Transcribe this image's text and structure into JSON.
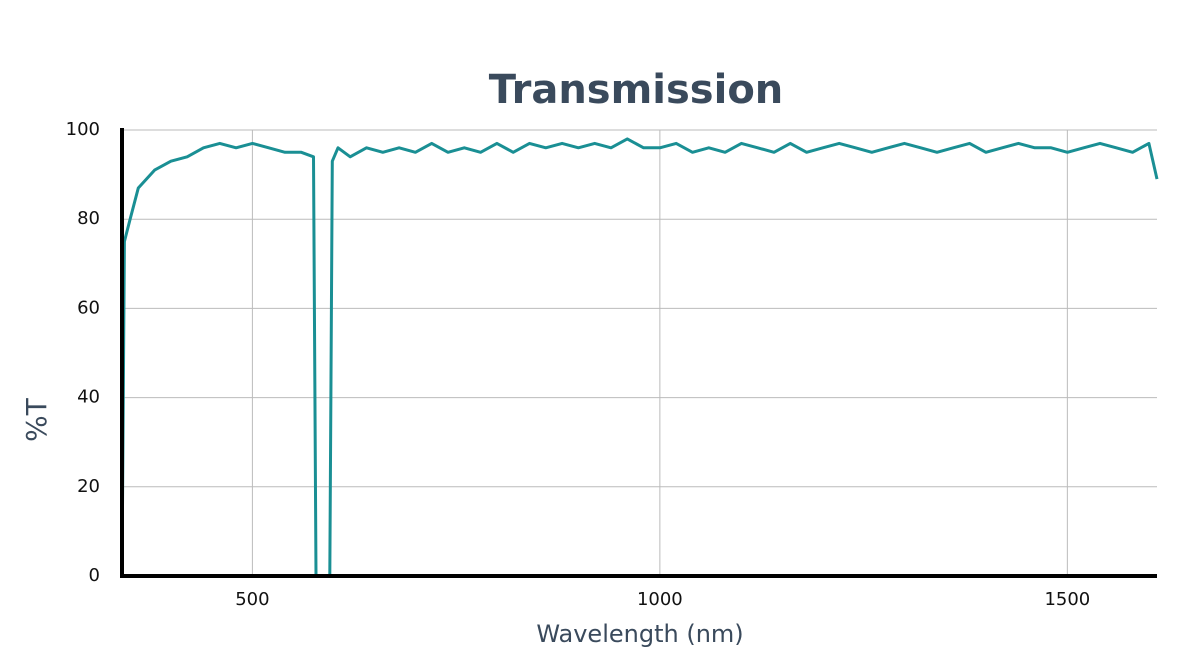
{
  "chart_data": {
    "type": "line",
    "title": "Transmission",
    "x_label": "Wavelength (nm)",
    "y_label": "%T",
    "x": [
      340,
      343,
      350,
      360,
      380,
      400,
      420,
      440,
      460,
      480,
      500,
      520,
      540,
      560,
      575,
      578,
      595,
      598,
      605,
      620,
      640,
      660,
      680,
      700,
      720,
      740,
      760,
      780,
      800,
      820,
      840,
      860,
      880,
      900,
      920,
      940,
      960,
      980,
      1000,
      1020,
      1040,
      1060,
      1080,
      1100,
      1120,
      1140,
      1160,
      1180,
      1200,
      1220,
      1240,
      1260,
      1280,
      1300,
      1320,
      1340,
      1360,
      1380,
      1400,
      1420,
      1440,
      1460,
      1480,
      1500,
      1520,
      1540,
      1560,
      1580,
      1600,
      1610
    ],
    "series": [
      {
        "color": "#1a8f94",
        "values": [
          0,
          75,
          80,
          87,
          91,
          93,
          94,
          96,
          97,
          96,
          97,
          96,
          95,
          95,
          94,
          0,
          0,
          93,
          96,
          94,
          96,
          95,
          96,
          95,
          97,
          95,
          96,
          95,
          97,
          95,
          97,
          96,
          97,
          96,
          97,
          96,
          98,
          96,
          96,
          97,
          95,
          96,
          95,
          97,
          96,
          95,
          97,
          95,
          96,
          97,
          96,
          95,
          96,
          97,
          96,
          95,
          96,
          97,
          95,
          96,
          97,
          96,
          96,
          95,
          96,
          97,
          96,
          95,
          97,
          89
        ]
      }
    ],
    "xlim": [
      340,
      1610
    ],
    "ylim": [
      0,
      100
    ],
    "xticks": [
      500,
      1000,
      1500
    ],
    "yticks": [
      0,
      20,
      40,
      60,
      80,
      100
    ],
    "grid": true
  }
}
